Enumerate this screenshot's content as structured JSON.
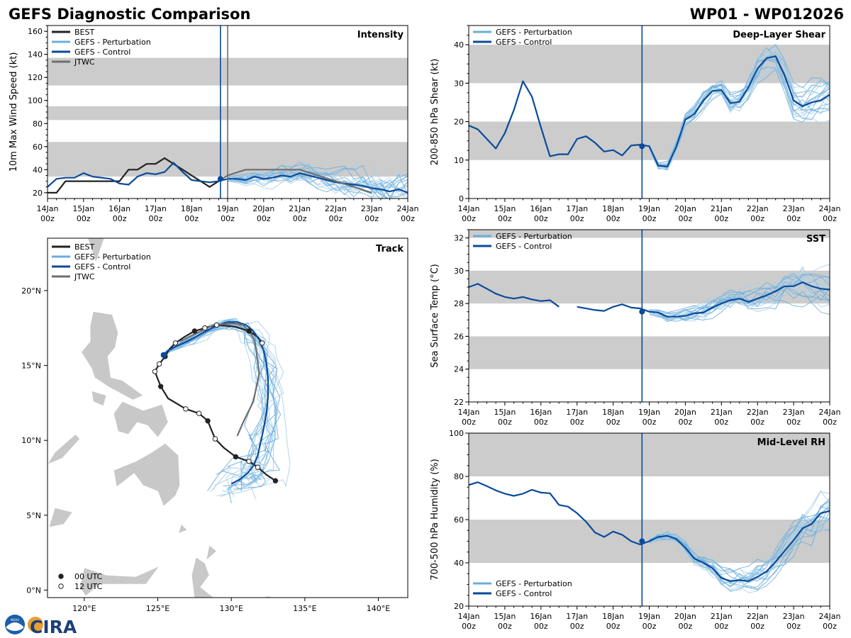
{
  "title_left": "GEFS Diagnostic Comparison",
  "title_right": "WP01 - WP012026",
  "logos": {
    "noaa": "NOAA",
    "cira": "CIRA"
  },
  "colors": {
    "best": "#222222",
    "perturbation": "#6aaedb",
    "perturbation_faint": "#a9cfe9",
    "control": "#0a4a9a",
    "jtwc": "#6e6e6e",
    "band": "#cccccc",
    "land": "#c8c8c8",
    "vline_now": "#0a4a9a",
    "vline_jtwc": "#707070"
  },
  "time_axis": {
    "days": [
      "14Jan",
      "15Jan",
      "16Jan",
      "17Jan",
      "18Jan",
      "19Jan",
      "20Jan",
      "21Jan",
      "22Jan",
      "23Jan",
      "24Jan"
    ],
    "hour_label": "00z",
    "analysis_day": 4.8,
    "jtwc_day": 5.0
  },
  "chart_data": [
    {
      "id": "intensity",
      "type": "line",
      "title": "Intensity",
      "ylabel": "10m Max Wind Speed (kt)",
      "ylim": [
        15,
        165
      ],
      "yticks": [
        20,
        40,
        60,
        80,
        100,
        120,
        140,
        160
      ],
      "bands": [
        [
          34,
          64
        ],
        [
          83,
          95
        ],
        [
          113,
          137
        ]
      ],
      "legend": [
        "BEST",
        "GEFS - Perturbation",
        "GEFS - Control",
        "JTWC"
      ],
      "series": [
        {
          "name": "BEST",
          "x": [
            0,
            0.25,
            0.5,
            0.75,
            1,
            1.25,
            1.5,
            1.75,
            2,
            2.25,
            2.5,
            2.75,
            3,
            3.25,
            3.5,
            3.75,
            4,
            4.25,
            4.5,
            4.75
          ],
          "y": [
            20,
            20,
            30,
            30,
            30,
            30,
            30,
            30,
            30,
            40,
            40,
            45,
            45,
            50,
            45,
            40,
            35,
            30,
            25,
            30
          ]
        },
        {
          "name": "GEFS - Control",
          "x": [
            0,
            0.25,
            0.5,
            0.75,
            1,
            1.25,
            1.5,
            1.75,
            2,
            2.25,
            2.5,
            2.75,
            3,
            3.25,
            3.5,
            3.75,
            4,
            4.25,
            4.5,
            4.75,
            5,
            5.25,
            5.5,
            5.75,
            6,
            6.25,
            6.5,
            6.75,
            7,
            7.25,
            7.5,
            7.75,
            8,
            8.25,
            8.5,
            8.75,
            9,
            9.25,
            9.5,
            9.75,
            10
          ],
          "y": [
            25,
            32,
            33,
            33,
            37,
            34,
            33,
            32,
            28,
            27,
            34,
            37,
            36,
            38,
            46,
            38,
            31,
            30,
            29,
            30,
            32,
            32,
            31,
            34,
            32,
            33,
            35,
            34,
            37,
            35,
            33,
            31,
            29,
            28,
            27,
            26,
            24,
            23,
            21,
            23,
            20
          ]
        },
        {
          "name": "JTWC",
          "x": [
            4.8,
            5,
            5.5,
            6,
            6.5,
            7,
            7.5,
            8,
            8.5,
            9
          ],
          "y": [
            31,
            35,
            40,
            40,
            40,
            40,
            35,
            30,
            25,
            20
          ]
        }
      ]
    },
    {
      "id": "shear",
      "type": "line",
      "title": "Deep-Layer Shear",
      "ylabel": "200-850 hPa Shear (kt)",
      "ylim": [
        0,
        45
      ],
      "yticks": [
        0,
        10,
        20,
        30,
        40
      ],
      "bands": [
        [
          10,
          20
        ],
        [
          30,
          40
        ]
      ],
      "legend": [
        "GEFS - Perturbation",
        "GEFS - Control"
      ],
      "series": [
        {
          "name": "GEFS - Control",
          "x": [
            0,
            0.25,
            0.5,
            0.75,
            1,
            1.25,
            1.5,
            1.75,
            2,
            2.25,
            2.5,
            2.75,
            3,
            3.25,
            3.5,
            3.75,
            4,
            4.25,
            4.5,
            4.75,
            5,
            5.25,
            5.5,
            5.75,
            6,
            6.25,
            6.5,
            6.75,
            7,
            7.25,
            7.5,
            7.75,
            8,
            8.25,
            8.5,
            8.75,
            9,
            9.25,
            9.5,
            9.75,
            10
          ],
          "y": [
            19,
            18,
            15.5,
            13,
            17,
            23,
            30.5,
            26.5,
            18.5,
            11,
            11.5,
            11.5,
            15.5,
            16.2,
            14.5,
            12.2,
            12.6,
            11.2,
            13.8,
            14,
            13.6,
            8.5,
            8.3,
            13.5,
            20.5,
            22,
            25.5,
            28,
            28.2,
            24.8,
            25.2,
            29,
            33.8,
            36.5,
            37,
            32,
            25.5,
            24,
            25,
            25.5,
            27
          ]
        }
      ]
    },
    {
      "id": "sst",
      "type": "line",
      "title": "SST",
      "ylabel": "Sea Surface Temp (°C)",
      "ylim": [
        22,
        32.5
      ],
      "yticks": [
        22,
        24,
        26,
        28,
        30,
        32
      ],
      "bands": [
        [
          24,
          26
        ],
        [
          28,
          30
        ],
        [
          32,
          33
        ]
      ],
      "legend": [
        "GEFS - Perturbation",
        "GEFS - Control"
      ],
      "series": [
        {
          "name": "GEFS - Control",
          "x": [
            0,
            0.25,
            0.5,
            0.75,
            1,
            1.25,
            1.5,
            1.75,
            2,
            2.25,
            2.5
          ],
          "y": [
            29,
            29.2,
            28.9,
            28.6,
            28.4,
            28.3,
            28.4,
            28.25,
            28.15,
            28.2,
            27.8
          ]
        },
        {
          "name": "GEFS - Control",
          "x": [
            3,
            3.25,
            3.5,
            3.75,
            4,
            4.25,
            4.5,
            4.75,
            5,
            5.25,
            5.5,
            5.75,
            6,
            6.25,
            6.5,
            6.75,
            7,
            7.25,
            7.5,
            7.75,
            8,
            8.25,
            8.5,
            8.75,
            9,
            9.25,
            9.5,
            9.75,
            10
          ],
          "y": [
            27.8,
            27.7,
            27.6,
            27.55,
            27.8,
            27.95,
            27.75,
            27.7,
            27.5,
            27.45,
            27.2,
            27.2,
            27.25,
            27.4,
            27.45,
            27.75,
            28,
            28.2,
            28.3,
            28.1,
            28.3,
            28.5,
            28.75,
            29.05,
            29.05,
            29.3,
            29.05,
            28.9,
            28.85
          ]
        }
      ]
    },
    {
      "id": "rh",
      "type": "line",
      "title": "Mid-Level RH",
      "ylabel": "700-500 hPa Humidity (%)",
      "ylim": [
        20,
        100
      ],
      "yticks": [
        20,
        40,
        60,
        80,
        100
      ],
      "bands": [
        [
          40,
          60
        ],
        [
          80,
          100
        ]
      ],
      "legend": [
        "GEFS - Perturbation",
        "GEFS - Control"
      ],
      "series": [
        {
          "name": "GEFS - Control",
          "x": [
            0,
            0.25,
            0.5,
            0.75,
            1,
            1.25,
            1.5,
            1.75,
            2,
            2.25,
            2.5,
            2.75,
            3,
            3.25,
            3.5,
            3.75,
            4,
            4.25,
            4.5,
            4.75,
            5,
            5.25,
            5.5,
            5.75,
            6,
            6.25,
            6.5,
            6.75,
            7,
            7.25,
            7.5,
            7.75,
            8,
            8.25,
            8.5,
            8.75,
            9,
            9.25,
            9.5,
            9.75,
            10
          ],
          "y": [
            76,
            77.3,
            75.5,
            73.5,
            72,
            71,
            72,
            73.8,
            72.5,
            72.2,
            66.8,
            66,
            63,
            59,
            54,
            52,
            54.5,
            53,
            50,
            48.5,
            50,
            52,
            52.5,
            51,
            47,
            42,
            40,
            37.5,
            33,
            31.5,
            32,
            31.5,
            33.5,
            36,
            40.5,
            45.5,
            50.5,
            56,
            58,
            63,
            64
          ]
        }
      ]
    },
    {
      "id": "track",
      "type": "scatter",
      "title": "Track",
      "xlim": [
        117.5,
        142
      ],
      "ylim": [
        -0.5,
        23.5
      ],
      "xticks": [
        "120°E",
        "125°E",
        "130°E",
        "135°E",
        "140°E"
      ],
      "xtick_values": [
        120,
        125,
        130,
        135,
        140
      ],
      "yticks": [
        "0°N",
        "5°N",
        "10°N",
        "15°N",
        "20°N"
      ],
      "ytick_values": [
        0,
        5,
        10,
        15,
        20
      ],
      "legend": [
        "BEST",
        "GEFS - Perturbation",
        "GEFS - Control",
        "JTWC"
      ],
      "marker_legend": [
        "00 UTC",
        "12 UTC"
      ],
      "series": [
        {
          "name": "BEST",
          "lon": [
            133,
            132.4,
            131.8,
            131.2,
            130.3,
            129.5,
            128.9,
            128.6,
            128.4,
            127.8,
            126.9,
            125.7,
            125.2,
            125,
            124.8,
            125.1,
            125.5,
            125.8,
            126.2,
            126.8,
            127.5,
            128.2,
            129,
            130.2,
            131.2,
            131.8,
            132.1
          ],
          "lat": [
            7.3,
            7.7,
            8.2,
            8.6,
            8.9,
            9.5,
            10.1,
            10.8,
            11.3,
            11.8,
            12.1,
            12.8,
            13.6,
            14.1,
            14.6,
            15.1,
            15.6,
            16.1,
            16.5,
            16.9,
            17.3,
            17.5,
            17.7,
            17.6,
            17.3,
            16.9,
            16.5
          ]
        },
        {
          "name": "GEFS - Control",
          "lon": [
            125.4,
            125.7,
            126.3,
            127.2,
            128.1,
            128.9,
            129.7,
            130.4,
            131.0,
            131.5,
            131.9,
            132.2,
            132.4,
            132.5,
            132.5,
            132.4,
            132.2,
            132.0,
            131.8,
            131.5,
            131.1,
            130.6,
            130.0
          ],
          "lat": [
            15.7,
            16.0,
            16.3,
            16.7,
            17.2,
            17.6,
            17.9,
            17.9,
            17.7,
            17.3,
            16.7,
            16.0,
            15.1,
            14.1,
            13.0,
            11.9,
            10.8,
            9.9,
            9.0,
            8.3,
            7.8,
            7.4,
            7.1
          ]
        },
        {
          "name": "JTWC",
          "lon": [
            126.5,
            127.5,
            128.8,
            130.0,
            130.8,
            131.3,
            131.6,
            131.9,
            131.5,
            130.9,
            130.4
          ],
          "lat": [
            16.6,
            17.1,
            17.7,
            17.8,
            17.7,
            17.2,
            16.6,
            14.5,
            12.6,
            11.4,
            10.3
          ]
        }
      ]
    }
  ]
}
